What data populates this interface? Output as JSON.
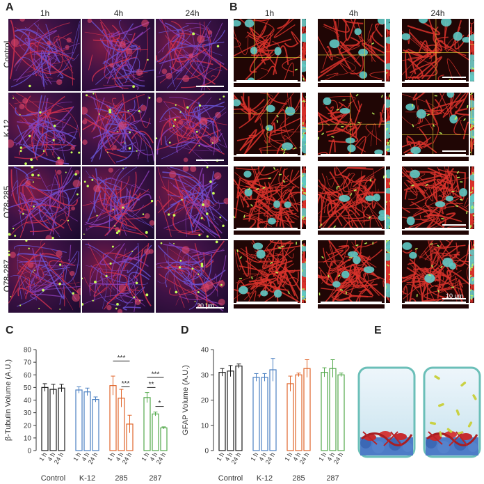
{
  "panels": {
    "A": {
      "label": "A",
      "columns": [
        "1h",
        "4h",
        "24h"
      ],
      "rows": [
        "Control",
        "K-12",
        "O78-285",
        "O78-287"
      ],
      "scale_bar_text": "20 μm"
    },
    "B": {
      "label": "B",
      "columns": [
        "1h",
        "4h",
        "24h"
      ],
      "scale_bar_text": "10 μm"
    },
    "E": {
      "label": "E"
    }
  },
  "chart_data": [
    {
      "panel": "C",
      "type": "bar",
      "ylabel": "β-Tubulin Volume (A.U.)",
      "ylim": [
        0,
        80
      ],
      "yticks": [
        0,
        10,
        20,
        30,
        40,
        50,
        60,
        70,
        80
      ],
      "x_labels": [
        "1 h",
        "4 h",
        "24 h"
      ],
      "groups": [
        {
          "name": "Control",
          "color": "#1a1a1a",
          "values": [
            50,
            48.5,
            49.5
          ],
          "errors": [
            3,
            4,
            3
          ]
        },
        {
          "name": "K-12",
          "color": "#4a7fc1",
          "values": [
            48,
            46.5,
            40.5
          ],
          "errors": [
            2.5,
            3,
            2
          ]
        },
        {
          "name": "285",
          "color": "#e0652a",
          "values": [
            51.5,
            41.5,
            21
          ],
          "errors": [
            7.5,
            7,
            7
          ]
        },
        {
          "name": "287",
          "color": "#52a84a",
          "values": [
            42,
            29,
            18
          ],
          "errors": [
            4,
            1.5,
            0.8
          ]
        }
      ],
      "significance": [
        {
          "group": "285",
          "from": "1 h",
          "to": "24 h",
          "text": "***"
        },
        {
          "group": "285",
          "from": "4 h",
          "to": "24 h",
          "text": "***"
        },
        {
          "group": "287",
          "from": "1 h",
          "to": "24 h",
          "text": "***"
        },
        {
          "group": "287",
          "from": "1 h",
          "to": "4 h",
          "text": "**"
        },
        {
          "group": "287",
          "from": "4 h",
          "to": "24 h",
          "text": "*"
        }
      ]
    },
    {
      "panel": "D",
      "type": "bar",
      "ylabel": "GFAP Volume (A.U.)",
      "ylim": [
        0,
        40
      ],
      "yticks": [
        0,
        10,
        20,
        30,
        40
      ],
      "x_labels": [
        "1 h",
        "4 h",
        "24 h"
      ],
      "groups": [
        {
          "name": "Control",
          "color": "#1a1a1a",
          "values": [
            31,
            31.5,
            33.5
          ],
          "errors": [
            1.5,
            2.2,
            0.8
          ]
        },
        {
          "name": "K-12",
          "color": "#4a7fc1",
          "values": [
            29,
            29,
            32
          ],
          "errors": [
            1.5,
            1.5,
            4.5
          ]
        },
        {
          "name": "285",
          "color": "#e0652a",
          "values": [
            26.5,
            30,
            32.5
          ],
          "errors": [
            3,
            0.7,
            3.5
          ]
        },
        {
          "name": "287",
          "color": "#52a84a",
          "values": [
            31,
            32.5,
            30
          ],
          "errors": [
            1.8,
            3.5,
            0.7
          ]
        }
      ]
    }
  ],
  "chart_labels": {
    "C": "C",
    "D": "D"
  }
}
